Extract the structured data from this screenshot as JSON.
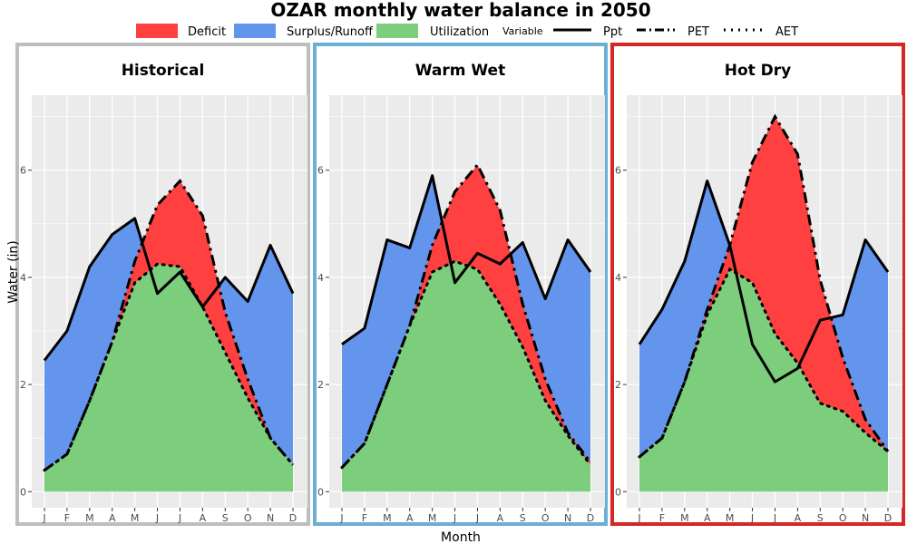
{
  "title": "OZAR monthly water balance in 2050",
  "legend": {
    "fill_items": [
      {
        "label": "Deficit",
        "color": "#ff4040"
      },
      {
        "label": "Surplus/Runoff",
        "color": "#6495ed"
      },
      {
        "label": "Utilization",
        "color": "#7ccd7c"
      }
    ],
    "line_title": "Variable",
    "line_items": [
      {
        "label": "Ppt",
        "style": "solid"
      },
      {
        "label": "PET",
        "style": "dashdot"
      },
      {
        "label": "AET",
        "style": "dotted"
      }
    ]
  },
  "colors": {
    "deficit": "#ff4040",
    "surplus": "#6495ed",
    "utilization": "#7ccd7c",
    "panel_bg": "#ebebeb",
    "grid": "#ffffff",
    "historical_border": "#bebebe",
    "warm_wet_border": "#6baed6",
    "hot_dry_border": "#d62728"
  },
  "chart_data": {
    "type": "area",
    "title": "OZAR monthly water balance in 2050",
    "xlabel": "Month",
    "ylabel": "Water (in)",
    "categories": [
      "J",
      "F",
      "M",
      "A",
      "M",
      "J",
      "J",
      "A",
      "S",
      "O",
      "N",
      "D"
    ],
    "ylim": [
      -0.3,
      7.4
    ],
    "yticks": [
      0,
      2,
      4,
      6
    ],
    "grid": true,
    "legend_position": "top",
    "panels": [
      {
        "name": "Historical",
        "series": [
          {
            "name": "Ppt",
            "values": [
              2.45,
              3.0,
              4.2,
              4.8,
              5.1,
              3.7,
              4.1,
              3.45,
              4.0,
              3.55,
              4.6,
              3.7
            ]
          },
          {
            "name": "PET",
            "values": [
              0.4,
              0.7,
              1.7,
              2.8,
              4.3,
              5.35,
              5.8,
              5.15,
              3.35,
              2.1,
              1.0,
              0.5
            ]
          },
          {
            "name": "AET",
            "values": [
              0.4,
              0.7,
              1.7,
              2.8,
              3.9,
              4.25,
              4.2,
              3.45,
              2.6,
              1.75,
              1.0,
              0.5
            ]
          }
        ]
      },
      {
        "name": "Warm Wet",
        "series": [
          {
            "name": "Ppt",
            "values": [
              2.75,
              3.05,
              4.7,
              4.55,
              5.9,
              3.9,
              4.45,
              4.25,
              4.65,
              3.6,
              4.7,
              4.1
            ]
          },
          {
            "name": "PET",
            "values": [
              0.45,
              0.9,
              2.0,
              3.1,
              4.6,
              5.6,
              6.1,
              5.25,
              3.5,
              2.1,
              1.1,
              0.55
            ]
          },
          {
            "name": "AET",
            "values": [
              0.45,
              0.9,
              2.0,
              3.1,
              4.1,
              4.3,
              4.15,
              3.5,
              2.7,
              1.7,
              1.05,
              0.5
            ]
          }
        ]
      },
      {
        "name": "Hot Dry",
        "series": [
          {
            "name": "Ppt",
            "values": [
              2.75,
              3.4,
              4.3,
              5.8,
              4.6,
              2.75,
              2.05,
              2.3,
              3.2,
              3.3,
              4.7,
              4.1
            ]
          },
          {
            "name": "PET",
            "values": [
              0.65,
              1.0,
              2.05,
              3.4,
              4.6,
              6.15,
              7.0,
              6.3,
              3.95,
              2.5,
              1.35,
              0.75
            ]
          },
          {
            "name": "AET",
            "values": [
              0.65,
              1.0,
              2.05,
              3.3,
              4.15,
              3.9,
              2.95,
              2.4,
              1.65,
              1.5,
              1.1,
              0.75
            ]
          }
        ]
      }
    ]
  }
}
